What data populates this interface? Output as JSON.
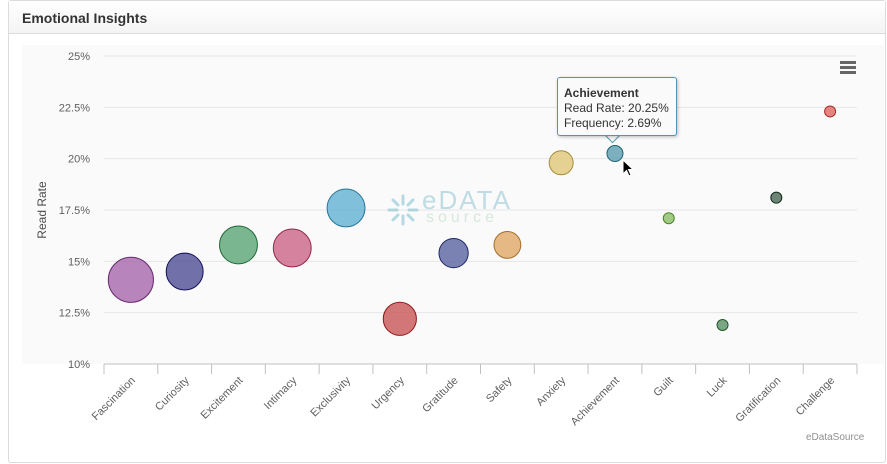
{
  "panel": {
    "title": "Emotional Insights"
  },
  "watermark": {
    "line1": "eDATA",
    "line2": "source"
  },
  "tooltip": {
    "title": "Achievement",
    "line1": "Read Rate: 20.25%",
    "line2": "Frequency: 2.69%"
  },
  "credit": "eDataSource",
  "icons": {
    "menu": "hamburger-menu-icon",
    "cursor": "mouse-pointer-icon"
  },
  "chart_data": {
    "type": "scatter",
    "subtype": "bubble",
    "title": "",
    "xlabel": "",
    "ylabel": "Read Rate",
    "ylim": [
      10,
      25
    ],
    "yticks": [
      10,
      12.5,
      15,
      17.5,
      20,
      22.5,
      25
    ],
    "ytick_labels": [
      "10%",
      "12.5%",
      "15%",
      "17.5%",
      "20%",
      "22.5%",
      "25%"
    ],
    "grid": true,
    "legend": "none",
    "categories": [
      "Fascination",
      "Curiosity",
      "Excitement",
      "Intimacy",
      "Exclusivity",
      "Urgency",
      "Gratitude",
      "Safety",
      "Anxiety",
      "Achievement",
      "Guilt",
      "Luck",
      "Gratification",
      "Challenge"
    ],
    "points": [
      {
        "category": "Fascination",
        "y": 14.1,
        "size": 2.3,
        "color": "#a666ad"
      },
      {
        "category": "Curiosity",
        "y": 14.5,
        "size": 1.35,
        "color": "#4f4e95"
      },
      {
        "category": "Excitement",
        "y": 15.8,
        "size": 1.45,
        "color": "#5aa574"
      },
      {
        "category": "Intimacy",
        "y": 15.65,
        "size": 1.45,
        "color": "#cc6487"
      },
      {
        "category": "Exclusivity",
        "y": 17.6,
        "size": 1.45,
        "color": "#61b1d3"
      },
      {
        "category": "Urgency",
        "y": 12.2,
        "size": 1.0,
        "color": "#c95556"
      },
      {
        "category": "Gratitude",
        "y": 15.4,
        "size": 0.85,
        "color": "#5a64a1"
      },
      {
        "category": "Safety",
        "y": 15.8,
        "size": 0.65,
        "color": "#e0a866"
      },
      {
        "category": "Anxiety",
        "y": 19.8,
        "size": 0.45,
        "color": "#e0c879"
      },
      {
        "category": "Achievement",
        "y": 20.25,
        "size": 2.69,
        "color": "#5c9db0"
      },
      {
        "category": "Guilt",
        "y": 17.1,
        "size": 0.2,
        "color": "#8bbe67"
      },
      {
        "category": "Luck",
        "y": 11.9,
        "size": 0.15,
        "color": "#5b9466"
      },
      {
        "category": "Gratification",
        "y": 18.1,
        "size": 0.15,
        "color": "#4b6755"
      },
      {
        "category": "Challenge",
        "y": 22.3,
        "size": 0.15,
        "color": "#e26763"
      }
    ]
  }
}
